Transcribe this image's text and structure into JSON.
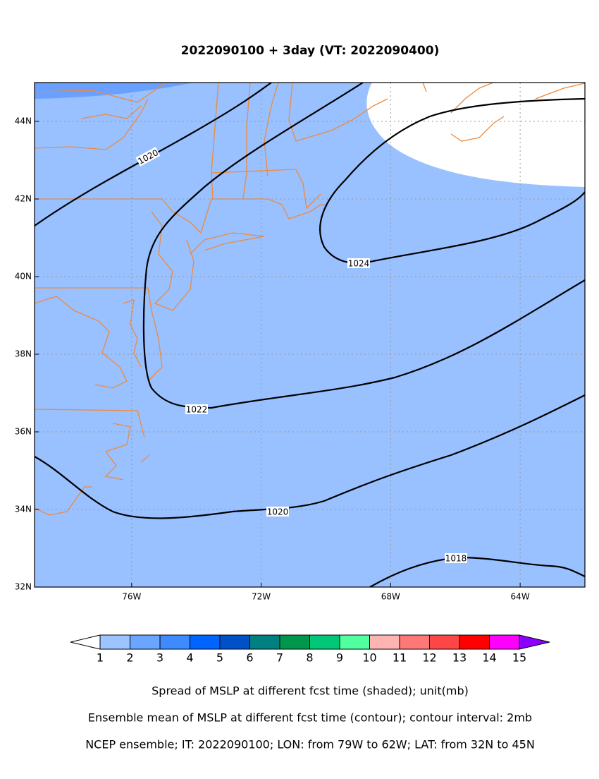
{
  "title": "2022090100 + 3day (VT: 2022090400)",
  "map": {
    "xlim": [
      -79,
      -62
    ],
    "ylim": [
      32,
      45
    ],
    "xticks": [
      {
        "value": -76,
        "label": "76W"
      },
      {
        "value": -72,
        "label": "72W"
      },
      {
        "value": -68,
        "label": "68W"
      },
      {
        "value": -64,
        "label": "64W"
      }
    ],
    "yticks": [
      {
        "value": 32,
        "label": "32N"
      },
      {
        "value": 34,
        "label": "34N"
      },
      {
        "value": 36,
        "label": "36N"
      },
      {
        "value": 38,
        "label": "38N"
      },
      {
        "value": 40,
        "label": "40N"
      },
      {
        "value": 42,
        "label": "42N"
      },
      {
        "value": 44,
        "label": "44N"
      }
    ],
    "contours": [
      {
        "level": 1020
      },
      {
        "level": 1022
      },
      {
        "level": 1024
      },
      {
        "level": 1020
      },
      {
        "level": 1018
      }
    ]
  },
  "colorbar": {
    "ticks": [
      1,
      2,
      3,
      4,
      5,
      6,
      7,
      8,
      9,
      10,
      11,
      12,
      13,
      14,
      15
    ],
    "colors": [
      "#9ec4ff",
      "#6aa6ff",
      "#3d8bff",
      "#0064ff",
      "#0050c8",
      "#008080",
      "#00964b",
      "#00c878",
      "#50ffa0",
      "#ffb4b4",
      "#ff7878",
      "#ff4646",
      "#ff0000",
      "#ff00ff"
    ],
    "over_color": "#8c00ff",
    "under_color": "#ffffff"
  },
  "captions": [
    "Spread of MSLP at different fcst time (shaded); unit(mb)",
    "Ensemble mean of MSLP at different fcst time (contour); contour interval: 2mb",
    "NCEP ensemble; IT: 2022090100; LON: from 79W to 62W; LAT: from 32N to 45N"
  ]
}
